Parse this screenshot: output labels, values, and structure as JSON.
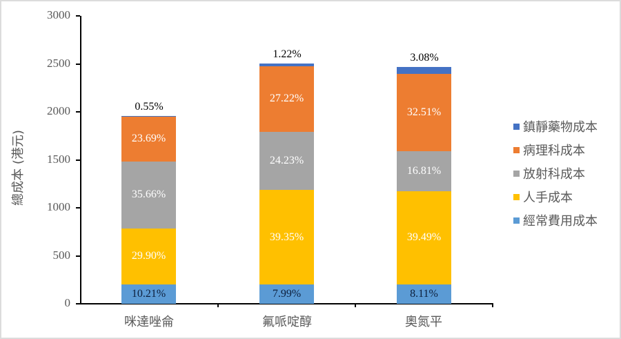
{
  "chart_data": {
    "type": "bar",
    "stacked": true,
    "title": "",
    "xlabel": "",
    "ylabel": "總成本 (港元)",
    "ylim": [
      0,
      3000
    ],
    "yticks": [
      0,
      500,
      1000,
      1500,
      2000,
      2500,
      3000
    ],
    "grid": false,
    "legend_position": "right",
    "categories": [
      "咪達唑侖",
      "氟哌啶醇",
      "奧氮平"
    ],
    "totals": [
      1960,
      2505,
      2470
    ],
    "series": [
      {
        "name": "經常費用成本",
        "color": "#5B9BD5",
        "values": [
          200,
          200,
          200
        ],
        "labels": [
          "10.21%",
          "7.99%",
          "8.11%"
        ]
      },
      {
        "name": "人手成本",
        "color": "#FFC000",
        "values": [
          586,
          986,
          975
        ],
        "labels": [
          "29.90%",
          "39.35%",
          "39.49%"
        ]
      },
      {
        "name": "放射科成本",
        "color": "#A5A5A5",
        "values": [
          699,
          607,
          415
        ],
        "labels": [
          "35.66%",
          "24.23%",
          "16.81%"
        ]
      },
      {
        "name": "病理科成本",
        "color": "#ED7D31",
        "values": [
          464,
          682,
          803
        ],
        "labels": [
          "23.69%",
          "27.22%",
          "32.51%"
        ]
      },
      {
        "name": "鎮靜藥物成本",
        "color": "#4472C4",
        "values": [
          11,
          31,
          76
        ],
        "labels": [
          "0.55%",
          "1.22%",
          "3.08%"
        ]
      }
    ]
  },
  "axis": {
    "y_title": "總成本 (港元)",
    "y_ticks": [
      "0",
      "500",
      "1000",
      "1500",
      "2000",
      "2500",
      "3000"
    ],
    "x_labels": [
      "咪達唑侖",
      "氟哌啶醇",
      "奧氮平"
    ]
  },
  "legend": [
    {
      "label": "鎮靜藥物成本",
      "color": "#4472C4"
    },
    {
      "label": "病理科成本",
      "color": "#ED7D31"
    },
    {
      "label": "放射科成本",
      "color": "#A5A5A5"
    },
    {
      "label": "人手成本",
      "color": "#FFC000"
    },
    {
      "label": "經常費用成本",
      "color": "#5B9BD5"
    }
  ]
}
